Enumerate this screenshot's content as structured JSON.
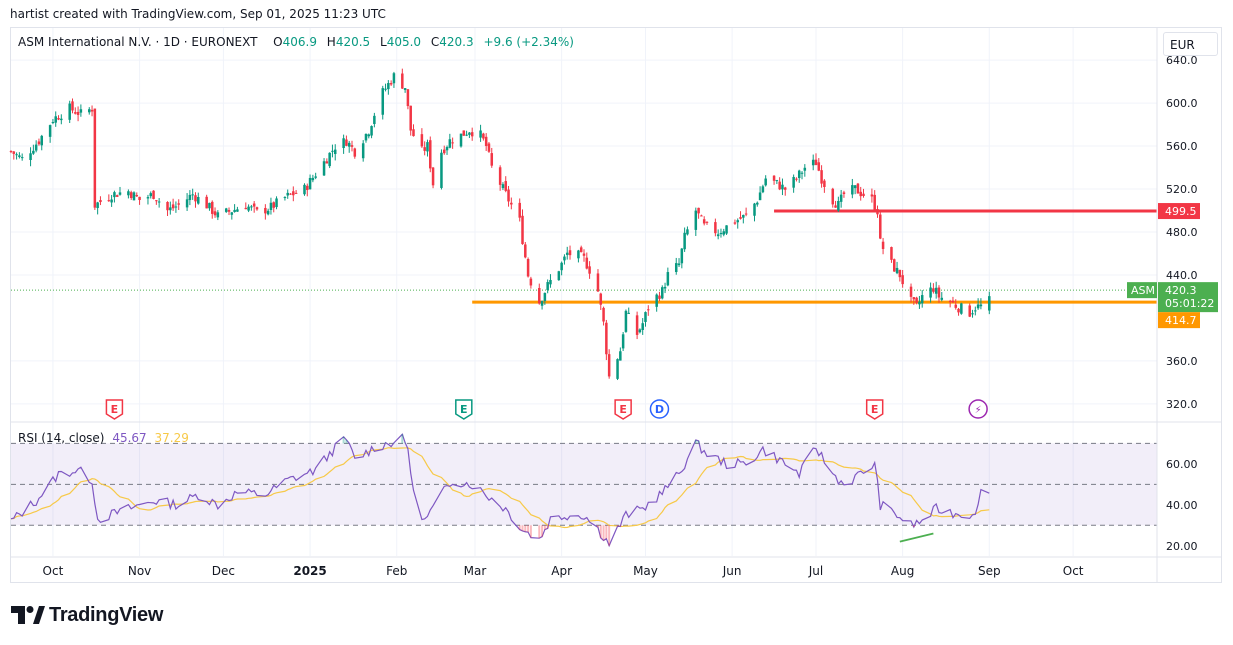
{
  "credit": "hartist created with TradingView.com, Sep 01, 2025 11:23 UTC",
  "symbol": {
    "name": "ASM International N.V. · 1D · EURONEXT",
    "o_label": "O",
    "o": "406.9",
    "h_label": "H",
    "h": "420.5",
    "l_label": "L",
    "l": "405.0",
    "c_label": "C",
    "c": "420.3",
    "change": "+9.6 (+2.34%)"
  },
  "currency": "EUR",
  "rsi_legend": {
    "label": "RSI (14, close)",
    "rsi": "45.67",
    "ma": "37.29"
  },
  "brand": "TradingView",
  "colors": {
    "up": "#089981",
    "down": "#f23645",
    "orange": "#ff9800",
    "red_level": "#f23645",
    "rsi": "#7e57c2",
    "rsi_ma": "#f7c948",
    "last_price": "#4caf50"
  },
  "chart_data": [
    {
      "type": "candlestick",
      "title": "ASM International N.V. · 1D · EURONEXT",
      "y_ticks": [
        "640.0",
        "600.0",
        "560.0",
        "520.0",
        "480.0",
        "440.0",
        "360.0",
        "320.0"
      ],
      "ylim": [
        305,
        655
      ],
      "x_ticks": [
        "Oct",
        "Nov",
        "Dec",
        "2025",
        "Feb",
        "Mar",
        "Apr",
        "May",
        "Jun",
        "Jul",
        "Aug",
        "Sep",
        "Oct"
      ],
      "x_range": [
        "2024-09-16",
        "2025-10-31"
      ],
      "levels": [
        {
          "name": "resistance",
          "value": 499.5,
          "label": "499.5",
          "from": "2025-06-16",
          "color": "#f23645"
        },
        {
          "name": "support",
          "value": 414.7,
          "label": "414.7",
          "from": "2025-02-28",
          "color": "#ff9800"
        }
      ],
      "last_price": {
        "symbol": "ASM",
        "value": 420.3,
        "label": "420.3",
        "countdown": "05:01:22"
      },
      "event_markers": [
        {
          "date": "2024-10-23",
          "icon": "E",
          "kind": "earnings"
        },
        {
          "date": "2025-02-25",
          "icon": "E",
          "kind": "earnings"
        },
        {
          "date": "2025-04-23",
          "icon": "E",
          "kind": "earnings"
        },
        {
          "date": "2025-05-06",
          "icon": "D",
          "kind": "dividend"
        },
        {
          "date": "2025-07-22",
          "icon": "E",
          "kind": "earnings"
        },
        {
          "date": "2025-08-28",
          "icon": "⚡",
          "kind": "event"
        }
      ],
      "anchors": [
        [
          "2024-09-16",
          555
        ],
        [
          "2024-09-20",
          548
        ],
        [
          "2024-09-26",
          565
        ],
        [
          "2024-10-01",
          585
        ],
        [
          "2024-10-07",
          595
        ],
        [
          "2024-10-11",
          590
        ],
        [
          "2024-10-15",
          595
        ],
        [
          "2024-10-16",
          505
        ],
        [
          "2024-10-22",
          515
        ],
        [
          "2024-10-28",
          518
        ],
        [
          "2024-11-01",
          510
        ],
        [
          "2024-11-06",
          515
        ],
        [
          "2024-11-11",
          500
        ],
        [
          "2024-11-15",
          505
        ],
        [
          "2024-11-20",
          515
        ],
        [
          "2024-11-25",
          505
        ],
        [
          "2024-11-29",
          495
        ],
        [
          "2024-12-04",
          500
        ],
        [
          "2024-12-09",
          505
        ],
        [
          "2024-12-13",
          498
        ],
        [
          "2024-12-18",
          503
        ],
        [
          "2024-12-23",
          512
        ],
        [
          "2024-12-30",
          520
        ],
        [
          "2025-01-06",
          545
        ],
        [
          "2025-01-10",
          560
        ],
        [
          "2025-01-14",
          565
        ],
        [
          "2025-01-17",
          555
        ],
        [
          "2025-01-22",
          575
        ],
        [
          "2025-01-24",
          590
        ],
        [
          "2025-01-27",
          610
        ],
        [
          "2025-01-31",
          625
        ],
        [
          "2025-02-04",
          615
        ],
        [
          "2025-02-06",
          575
        ],
        [
          "2025-02-10",
          555
        ],
        [
          "2025-02-12",
          560
        ],
        [
          "2025-02-14",
          525
        ],
        [
          "2025-02-17",
          555
        ],
        [
          "2025-02-20",
          565
        ],
        [
          "2025-02-24",
          570
        ],
        [
          "2025-02-27",
          575
        ],
        [
          "2025-03-03",
          570
        ],
        [
          "2025-03-05",
          560
        ],
        [
          "2025-03-07",
          540
        ],
        [
          "2025-03-12",
          515
        ],
        [
          "2025-03-17",
          490
        ],
        [
          "2025-03-20",
          440
        ],
        [
          "2025-03-24",
          415
        ],
        [
          "2025-03-27",
          430
        ],
        [
          "2025-04-01",
          450
        ],
        [
          "2025-04-03",
          460
        ],
        [
          "2025-04-07",
          458
        ],
        [
          "2025-04-09",
          455
        ],
        [
          "2025-04-11",
          445
        ],
        [
          "2025-04-14",
          425
        ],
        [
          "2025-04-16",
          395
        ],
        [
          "2025-04-18",
          345
        ],
        [
          "2025-04-22",
          370
        ],
        [
          "2025-04-24",
          405
        ],
        [
          "2025-04-28",
          385
        ],
        [
          "2025-04-30",
          395
        ],
        [
          "2025-05-02",
          410
        ],
        [
          "2025-05-05",
          420
        ],
        [
          "2025-05-07",
          425
        ],
        [
          "2025-05-09",
          440
        ],
        [
          "2025-05-13",
          450
        ],
        [
          "2025-05-15",
          475
        ],
        [
          "2025-05-19",
          500
        ],
        [
          "2025-05-22",
          485
        ],
        [
          "2025-05-27",
          480
        ],
        [
          "2025-06-02",
          490
        ],
        [
          "2025-06-06",
          495
        ],
        [
          "2025-06-10",
          510
        ],
        [
          "2025-06-13",
          530
        ],
        [
          "2025-06-17",
          525
        ],
        [
          "2025-06-20",
          520
        ],
        [
          "2025-06-24",
          530
        ],
        [
          "2025-06-27",
          540
        ],
        [
          "2025-07-01",
          545
        ],
        [
          "2025-07-03",
          530
        ],
        [
          "2025-07-07",
          510
        ],
        [
          "2025-07-09",
          505
        ],
        [
          "2025-07-11",
          515
        ],
        [
          "2025-07-15",
          520
        ],
        [
          "2025-07-18",
          515
        ],
        [
          "2025-07-21",
          510
        ],
        [
          "2025-07-23",
          500
        ],
        [
          "2025-07-24",
          470
        ],
        [
          "2025-07-28",
          450
        ],
        [
          "2025-07-31",
          440
        ],
        [
          "2025-08-04",
          415
        ],
        [
          "2025-08-06",
          410
        ],
        [
          "2025-08-08",
          420
        ],
        [
          "2025-08-12",
          428
        ],
        [
          "2025-08-14",
          420
        ],
        [
          "2025-08-18",
          415
        ],
        [
          "2025-08-21",
          410
        ],
        [
          "2025-08-25",
          405
        ],
        [
          "2025-08-27",
          410
        ],
        [
          "2025-08-29",
          411
        ],
        [
          "2025-09-01",
          420.3
        ]
      ],
      "rsi_ticks": [
        "60.00",
        "40.00",
        "20.00"
      ],
      "rsi_levels": [
        70,
        50,
        30
      ],
      "rsi_ylim": [
        15,
        78
      ],
      "rsi_anchors": [
        [
          "2024-09-16",
          32
        ],
        [
          "2024-09-25",
          42
        ],
        [
          "2024-10-03",
          55
        ],
        [
          "2024-10-10",
          57
        ],
        [
          "2024-10-15",
          52
        ],
        [
          "2024-10-17",
          33
        ],
        [
          "2024-10-28",
          38
        ],
        [
          "2024-11-06",
          42
        ],
        [
          "2024-11-15",
          40
        ],
        [
          "2024-11-22",
          45
        ],
        [
          "2024-11-29",
          40
        ],
        [
          "2024-12-06",
          46
        ],
        [
          "2024-12-16",
          45
        ],
        [
          "2024-12-24",
          52
        ],
        [
          "2025-01-03",
          57
        ],
        [
          "2025-01-10",
          68
        ],
        [
          "2025-01-14",
          72
        ],
        [
          "2025-01-17",
          62
        ],
        [
          "2025-01-24",
          68
        ],
        [
          "2025-02-03",
          72
        ],
        [
          "2025-02-05",
          68
        ],
        [
          "2025-02-07",
          45
        ],
        [
          "2025-02-11",
          32
        ],
        [
          "2025-02-17",
          45
        ],
        [
          "2025-02-21",
          52
        ],
        [
          "2025-02-28",
          50
        ],
        [
          "2025-03-05",
          45
        ],
        [
          "2025-03-12",
          38
        ],
        [
          "2025-03-18",
          28
        ],
        [
          "2025-03-24",
          23
        ],
        [
          "2025-03-28",
          33
        ],
        [
          "2025-04-03",
          35
        ],
        [
          "2025-04-09",
          35
        ],
        [
          "2025-04-14",
          28
        ],
        [
          "2025-04-18",
          21
        ],
        [
          "2025-04-24",
          35
        ],
        [
          "2025-04-30",
          38
        ],
        [
          "2025-05-07",
          46
        ],
        [
          "2025-05-13",
          55
        ],
        [
          "2025-05-19",
          70
        ],
        [
          "2025-05-23",
          65
        ],
        [
          "2025-05-30",
          60
        ],
        [
          "2025-06-06",
          60
        ],
        [
          "2025-06-12",
          67
        ],
        [
          "2025-06-18",
          62
        ],
        [
          "2025-06-25",
          55
        ],
        [
          "2025-07-01",
          68
        ],
        [
          "2025-07-07",
          55
        ],
        [
          "2025-07-11",
          50
        ],
        [
          "2025-07-17",
          55
        ],
        [
          "2025-07-22",
          60
        ],
        [
          "2025-07-24",
          40
        ],
        [
          "2025-07-30",
          35
        ],
        [
          "2025-08-04",
          30
        ],
        [
          "2025-08-08",
          32
        ],
        [
          "2025-08-13",
          38
        ],
        [
          "2025-08-19",
          36
        ],
        [
          "2025-08-25",
          35
        ],
        [
          "2025-08-28",
          39
        ],
        [
          "2025-08-29",
          46
        ],
        [
          "2025-09-01",
          45.67
        ]
      ],
      "divergence": {
        "from": [
          "2025-07-31",
          22
        ],
        "to": [
          "2025-08-12",
          26
        ],
        "color": "#4caf50"
      }
    }
  ]
}
